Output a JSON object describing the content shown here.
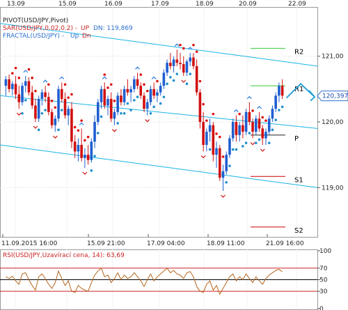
{
  "chart_data": {
    "type": "candlestick",
    "pair": "USD/JPY",
    "indicators": {
      "pivot": {
        "label": "PIVOT(USD/JPY,Pivot)"
      },
      "sar": {
        "label": "SAR(USD/JPY,0.02,0.2) -",
        "up": "UP",
        "dn_value_text": "DN: 119,869"
      },
      "fractal": {
        "label": "FRACTAL(USD/JPY) -",
        "up": "Up",
        "dn": "Dn"
      }
    },
    "top_dates": [
      "13.09",
      "15.09",
      "16.09",
      "17.09",
      "18.09",
      "20.09",
      "22.09"
    ],
    "bottom_dates": [
      "11.09.2015 16:00",
      "15.09 21:00",
      "17.09 04:00",
      "18.09 11:00",
      "21.09 16:00"
    ],
    "y_axis": {
      "ticks": [
        119.0,
        120.0,
        121.0
      ],
      "tick_labels": [
        "119,00",
        "120,00",
        "121,00"
      ],
      "range": [
        118.25,
        121.75
      ]
    },
    "current_price": {
      "value": 120.397,
      "label": "120,397"
    },
    "pivot_levels": [
      {
        "name": "R2",
        "value": 121.12,
        "color": "#33cc33"
      },
      {
        "name": "R1",
        "value": 120.55,
        "color": "#33cc33"
      },
      {
        "name": "P",
        "value": 119.8,
        "color": "#222222"
      },
      {
        "name": "S1",
        "value": 119.17,
        "color": "#cc0000"
      },
      {
        "name": "S2",
        "value": 118.4,
        "color": "#cc0000"
      }
    ],
    "channel_lines": [
      {
        "from": [
          0,
          121.5
        ],
        "to": [
          100,
          120.85
        ]
      },
      {
        "from": [
          0,
          120.4
        ],
        "to": [
          100,
          119.9
        ]
      },
      {
        "from": [
          0,
          119.65
        ],
        "to": [
          100,
          119.0
        ]
      }
    ],
    "candles": [
      [
        120.55,
        120.7,
        120.4,
        120.65
      ],
      [
        120.65,
        120.72,
        120.45,
        120.5
      ],
      [
        120.5,
        120.62,
        120.4,
        120.58
      ],
      [
        120.58,
        120.7,
        120.35,
        120.42
      ],
      [
        120.42,
        120.55,
        120.2,
        120.3
      ],
      [
        120.3,
        120.6,
        120.25,
        120.55
      ],
      [
        120.55,
        120.7,
        120.45,
        120.62
      ],
      [
        120.62,
        120.68,
        120.4,
        120.45
      ],
      [
        120.45,
        120.55,
        120.2,
        120.25
      ],
      [
        120.25,
        120.35,
        120.0,
        120.05
      ],
      [
        120.05,
        120.4,
        120.0,
        120.35
      ],
      [
        120.35,
        120.5,
        120.25,
        120.45
      ],
      [
        120.45,
        120.55,
        120.3,
        120.38
      ],
      [
        120.38,
        120.45,
        120.1,
        120.15
      ],
      [
        120.15,
        120.2,
        119.9,
        119.95
      ],
      [
        119.95,
        120.1,
        119.85,
        120.05
      ],
      [
        120.05,
        120.55,
        120.0,
        120.5
      ],
      [
        120.5,
        120.6,
        120.3,
        120.35
      ],
      [
        120.35,
        120.45,
        120.05,
        120.1
      ],
      [
        120.1,
        120.25,
        119.95,
        120.2
      ],
      [
        120.2,
        120.3,
        119.6,
        119.7
      ],
      [
        119.7,
        119.8,
        119.45,
        119.55
      ],
      [
        119.55,
        119.75,
        119.4,
        119.65
      ],
      [
        119.65,
        119.9,
        119.4,
        119.45
      ],
      [
        119.45,
        119.6,
        119.3,
        119.5
      ],
      [
        119.5,
        119.65,
        119.35,
        119.42
      ],
      [
        119.42,
        119.75,
        119.38,
        119.7
      ],
      [
        119.7,
        120.1,
        119.6,
        120.0
      ],
      [
        120.0,
        120.35,
        119.95,
        120.3
      ],
      [
        120.3,
        120.55,
        120.2,
        120.5
      ],
      [
        120.5,
        120.6,
        120.2,
        120.25
      ],
      [
        120.25,
        120.4,
        120.1,
        120.35
      ],
      [
        120.35,
        120.45,
        120.0,
        120.05
      ],
      [
        120.05,
        120.2,
        119.95,
        120.15
      ],
      [
        120.15,
        120.45,
        120.1,
        120.4
      ],
      [
        120.4,
        120.5,
        120.25,
        120.3
      ],
      [
        120.3,
        120.55,
        120.25,
        120.5
      ],
      [
        120.5,
        120.65,
        120.4,
        120.45
      ],
      [
        120.45,
        120.55,
        120.3,
        120.5
      ],
      [
        120.5,
        120.7,
        120.45,
        120.65
      ],
      [
        120.65,
        120.75,
        120.5,
        120.55
      ],
      [
        120.55,
        120.6,
        120.35,
        120.4
      ],
      [
        120.4,
        120.45,
        120.15,
        120.2
      ],
      [
        120.2,
        120.35,
        120.1,
        120.3
      ],
      [
        120.3,
        120.55,
        120.25,
        120.5
      ],
      [
        120.5,
        120.6,
        120.35,
        120.4
      ],
      [
        120.4,
        120.5,
        120.3,
        120.45
      ],
      [
        120.45,
        120.6,
        120.4,
        120.55
      ],
      [
        120.55,
        120.8,
        120.5,
        120.75
      ],
      [
        120.75,
        120.95,
        120.7,
        120.9
      ],
      [
        120.9,
        121.05,
        120.8,
        120.85
      ],
      [
        120.85,
        121.0,
        120.75,
        120.95
      ],
      [
        120.95,
        121.1,
        120.85,
        120.9
      ],
      [
        120.9,
        121.05,
        120.8,
        120.88
      ],
      [
        120.88,
        121.0,
        120.7,
        120.75
      ],
      [
        120.75,
        120.95,
        120.7,
        120.92
      ],
      [
        120.92,
        121.05,
        120.85,
        120.98
      ],
      [
        120.98,
        121.05,
        120.8,
        120.85
      ],
      [
        120.85,
        120.95,
        120.4,
        120.45
      ],
      [
        120.45,
        120.5,
        119.9,
        120.0
      ],
      [
        120.0,
        120.15,
        119.55,
        119.65
      ],
      [
        119.65,
        119.9,
        119.55,
        119.85
      ],
      [
        119.85,
        120.05,
        119.7,
        119.95
      ],
      [
        119.95,
        120.0,
        119.4,
        119.5
      ],
      [
        119.5,
        119.7,
        119.3,
        119.6
      ],
      [
        119.6,
        119.65,
        119.1,
        119.15
      ],
      [
        119.15,
        119.35,
        118.95,
        119.25
      ],
      [
        119.25,
        119.55,
        119.2,
        119.5
      ],
      [
        119.5,
        119.8,
        119.45,
        119.75
      ],
      [
        119.75,
        120.05,
        119.7,
        120.0
      ],
      [
        120.0,
        120.1,
        119.7,
        119.8
      ],
      [
        119.8,
        120.0,
        119.7,
        119.95
      ],
      [
        119.95,
        120.1,
        119.75,
        119.85
      ],
      [
        119.85,
        120.2,
        119.8,
        120.15
      ],
      [
        120.15,
        120.3,
        119.95,
        120.0
      ],
      [
        120.0,
        120.05,
        119.75,
        119.85
      ],
      [
        119.85,
        120.1,
        119.8,
        120.05
      ],
      [
        120.05,
        120.15,
        119.85,
        119.9
      ],
      [
        119.9,
        119.95,
        119.65,
        119.75
      ],
      [
        119.75,
        119.9,
        119.65,
        119.85
      ],
      [
        119.85,
        120.1,
        119.8,
        120.05
      ],
      [
        120.05,
        120.25,
        120.0,
        120.2
      ],
      [
        120.2,
        120.45,
        120.15,
        120.4
      ],
      [
        120.4,
        120.6,
        120.3,
        120.55
      ],
      [
        120.55,
        120.65,
        120.35,
        120.4
      ]
    ],
    "rsi": {
      "label": "RSI(USD/JPY,Uzavírací cena, 14): 63,69",
      "levels": [
        30,
        50,
        70
      ],
      "axis_labels": [
        "100",
        "70",
        "50",
        "30",
        "0"
      ],
      "values": [
        55,
        52,
        56,
        48,
        42,
        60,
        62,
        50,
        40,
        32,
        55,
        60,
        52,
        42,
        35,
        45,
        65,
        52,
        40,
        48,
        30,
        28,
        40,
        35,
        32,
        30,
        45,
        58,
        65,
        70,
        55,
        58,
        45,
        52,
        62,
        50,
        58,
        52,
        55,
        62,
        55,
        48,
        38,
        50,
        60,
        48,
        55,
        60,
        65,
        70,
        62,
        66,
        60,
        58,
        52,
        62,
        64,
        55,
        38,
        30,
        28,
        42,
        48,
        32,
        40,
        25,
        35,
        45,
        55,
        60,
        48,
        55,
        50,
        60,
        52,
        45,
        55,
        48,
        42,
        52,
        58,
        62,
        66,
        68,
        63.69
      ]
    }
  }
}
